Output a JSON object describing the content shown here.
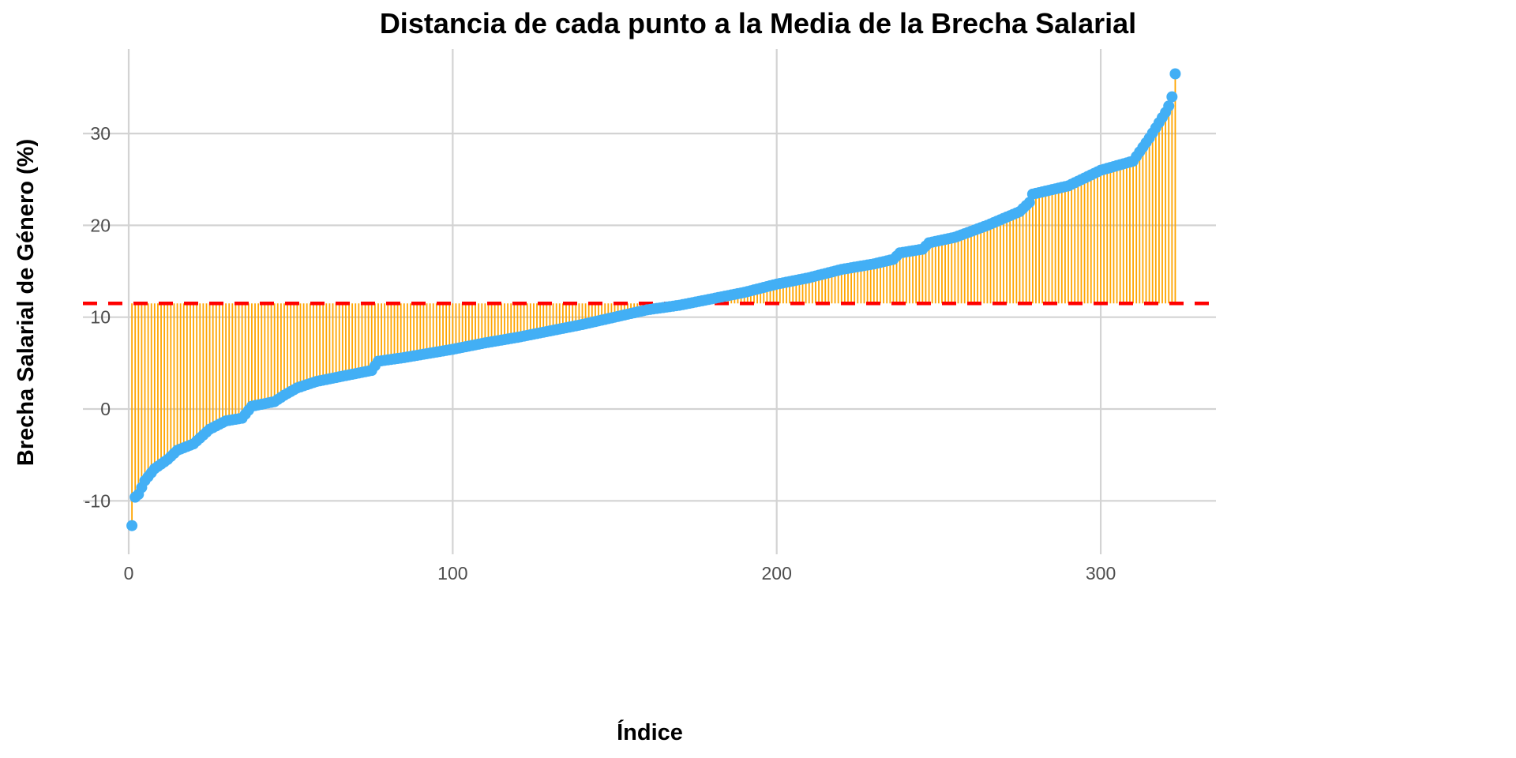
{
  "chart_data": {
    "type": "lollipop",
    "title": "Distancia de cada punto a la Media de la Brecha Salarial",
    "xlabel": "Índice",
    "ylabel": "Brecha Salarial de Género (%)",
    "xlim": [
      -10,
      335
    ],
    "ylim": [
      -15.5,
      39
    ],
    "x_ticks": [
      0,
      100,
      200,
      300
    ],
    "x_tick_labels": [
      "0",
      "100",
      "200",
      "300"
    ],
    "y_ticks": [
      -10,
      0,
      10,
      20,
      30
    ],
    "y_tick_labels": [
      "-10",
      "0",
      "10",
      "20",
      "30"
    ],
    "grid": true,
    "mean_line": 11.5,
    "n_points": 323,
    "sorted_value_anchors": [
      [
        1,
        -12.7
      ],
      [
        2,
        -9.6
      ],
      [
        3,
        -9.3
      ],
      [
        5,
        -7.8
      ],
      [
        8,
        -6.5
      ],
      [
        12,
        -5.5
      ],
      [
        15,
        -4.5
      ],
      [
        20,
        -3.8
      ],
      [
        25,
        -2.2
      ],
      [
        30,
        -1.3
      ],
      [
        35,
        -1.0
      ],
      [
        38,
        0.3
      ],
      [
        45,
        0.8
      ],
      [
        48,
        1.5
      ],
      [
        52,
        2.3
      ],
      [
        58,
        3.0
      ],
      [
        65,
        3.5
      ],
      [
        75,
        4.2
      ],
      [
        77,
        5.2
      ],
      [
        85,
        5.6
      ],
      [
        95,
        6.2
      ],
      [
        100,
        6.5
      ],
      [
        110,
        7.2
      ],
      [
        120,
        7.8
      ],
      [
        130,
        8.5
      ],
      [
        140,
        9.2
      ],
      [
        150,
        10.0
      ],
      [
        160,
        10.8
      ],
      [
        170,
        11.3
      ],
      [
        180,
        12.0
      ],
      [
        190,
        12.7
      ],
      [
        200,
        13.6
      ],
      [
        210,
        14.3
      ],
      [
        220,
        15.2
      ],
      [
        230,
        15.8
      ],
      [
        236,
        16.3
      ],
      [
        238,
        17.0
      ],
      [
        245,
        17.4
      ],
      [
        247,
        18.1
      ],
      [
        255,
        18.7
      ],
      [
        265,
        20.0
      ],
      [
        275,
        21.5
      ],
      [
        278,
        22.5
      ],
      [
        279,
        23.4
      ],
      [
        290,
        24.3
      ],
      [
        300,
        26.0
      ],
      [
        310,
        27.0
      ],
      [
        315,
        29.5
      ],
      [
        320,
        32.3
      ],
      [
        321,
        33.0
      ],
      [
        322,
        34.0
      ],
      [
        323,
        36.5
      ]
    ],
    "colors": {
      "point": "#42AFF5",
      "segment": "#FFA500",
      "mean_line": "#FF0000",
      "grid": "#D3D3D3"
    }
  }
}
